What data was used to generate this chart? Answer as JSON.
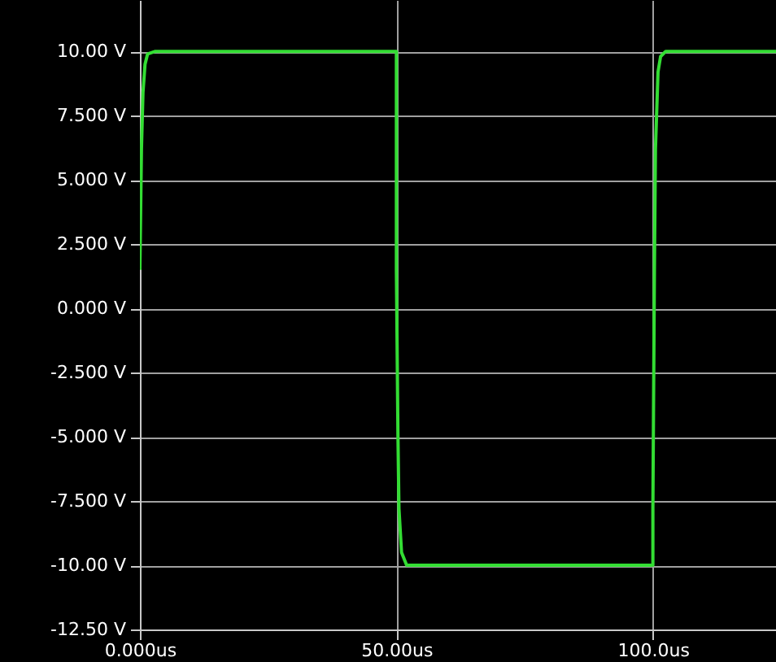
{
  "chart_data": {
    "type": "line",
    "x": [
      0,
      0.3,
      0.6,
      1,
      1.5,
      3,
      50,
      50,
      50.3,
      50.5,
      51,
      52,
      100,
      100,
      100.3,
      100.5,
      101,
      101.5,
      102.5,
      124
    ],
    "series": [
      {
        "color": "#33dd33",
        "values": [
          1.5,
          6.2,
          8.4,
          9.5,
          9.9,
          10,
          10,
          1.5,
          -4.9,
          -7.8,
          -9.5,
          -10,
          -10,
          -7.8,
          1.5,
          6.2,
          9.2,
          9.8,
          10,
          10
        ]
      }
    ],
    "xlim": [
      0,
      124
    ],
    "ylim": [
      -12.5,
      12
    ],
    "xticks": [
      {
        "value": 0,
        "label": "0.000us"
      },
      {
        "value": 50,
        "label": "50.00us"
      },
      {
        "value": 100,
        "label": "100.0us"
      }
    ],
    "yticks": [
      {
        "value": -12.5,
        "label": "-12.50 V"
      },
      {
        "value": -10,
        "label": "-10.00 V"
      },
      {
        "value": -7.5,
        "label": "-7.500 V"
      },
      {
        "value": -5,
        "label": "-5.000 V"
      },
      {
        "value": -2.5,
        "label": "-2.500 V"
      },
      {
        "value": 0,
        "label": "0.000 V"
      },
      {
        "value": 2.5,
        "label": "2.500 V"
      },
      {
        "value": 5,
        "label": "5.000 V"
      },
      {
        "value": 7.5,
        "label": "7.500 V"
      },
      {
        "value": 10,
        "label": "10.00 V"
      }
    ],
    "grid": true,
    "line_style": "solid"
  }
}
